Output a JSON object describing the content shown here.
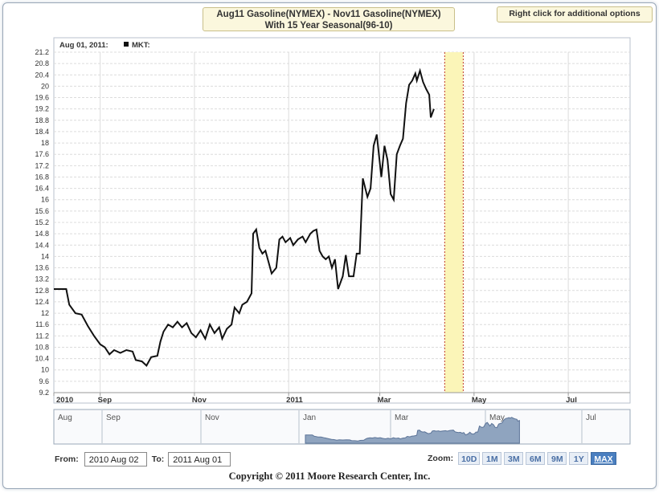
{
  "header": {
    "title_line1": "Aug11 Gasoline(NYMEX) - Nov11 Gasoline(NYMEX)",
    "title_line2": "With 15 Year Seasonal(96-10)",
    "right_click_label": "Right click for additional options"
  },
  "legend": {
    "date_label": "Aug 01, 2011:",
    "series_label": "MKT:"
  },
  "navigator": {
    "labels": [
      "Aug",
      "Sep",
      "Nov",
      "Jan",
      "Mar",
      "May",
      "Jul"
    ]
  },
  "controls": {
    "from_label": "From:",
    "from_value": "2010 Aug 02",
    "to_label": "To:",
    "to_value": "2011 Aug 01",
    "zoom_label": "Zoom:",
    "zoom_buttons": [
      "10D",
      "1M",
      "3M",
      "6M",
      "9M",
      "1Y",
      "MAX"
    ],
    "active_zoom": "MAX"
  },
  "footer": {
    "copyright": "Copyright © 2011 Moore Research Center, Inc."
  },
  "colors": {
    "line": "#111111",
    "highlight_band": "#fbf5b8",
    "highlight_border": "#c0392b",
    "navigator_fill": "#8fa4bf"
  },
  "chart_data": {
    "type": "line",
    "title": "Aug11 Gasoline(NYMEX) - Nov11 Gasoline(NYMEX) With 15 Year Seasonal(96-10)",
    "xlabel": "",
    "ylabel": "",
    "ylim": [
      9.2,
      21.2
    ],
    "yticks": [
      "9.2",
      "9.6",
      "10",
      "10.4",
      "10.8",
      "11.2",
      "11.6",
      "12",
      "12.4",
      "12.8",
      "13.2",
      "13.6",
      "14",
      "14.4",
      "14.8",
      "15.2",
      "15.6",
      "16",
      "16.4",
      "16.8",
      "17.2",
      "17.6",
      "18",
      "18.4",
      "18.8",
      "19.2",
      "19.6",
      "20",
      "20.4",
      "20.8",
      "21.2"
    ],
    "xlim": [
      "2010-08-02",
      "2011-08-10"
    ],
    "xticks": [
      {
        "label": "2010",
        "date": "2010-08-02"
      },
      {
        "label": "Sep",
        "date": "2010-09-01"
      },
      {
        "label": "Nov",
        "date": "2010-11-01"
      },
      {
        "label": "2011",
        "date": "2011-01-01"
      },
      {
        "label": "Mar",
        "date": "2011-03-01"
      },
      {
        "label": "May",
        "date": "2011-05-01"
      },
      {
        "label": "Jul",
        "date": "2011-07-01"
      }
    ],
    "highlight_range": [
      "2011-04-12",
      "2011-04-24"
    ],
    "grid": true,
    "series": [
      {
        "name": "MKT",
        "points": [
          [
            "2010-08-02",
            12.85
          ],
          [
            "2010-08-10",
            12.85
          ],
          [
            "2010-08-12",
            12.3
          ],
          [
            "2010-08-16",
            12.0
          ],
          [
            "2010-08-20",
            11.95
          ],
          [
            "2010-08-24",
            11.55
          ],
          [
            "2010-08-28",
            11.2
          ],
          [
            "2010-09-01",
            10.9
          ],
          [
            "2010-09-04",
            10.8
          ],
          [
            "2010-09-07",
            10.55
          ],
          [
            "2010-09-10",
            10.7
          ],
          [
            "2010-09-14",
            10.6
          ],
          [
            "2010-09-18",
            10.7
          ],
          [
            "2010-09-22",
            10.65
          ],
          [
            "2010-09-24",
            10.35
          ],
          [
            "2010-09-28",
            10.3
          ],
          [
            "2010-10-01",
            10.15
          ],
          [
            "2010-10-04",
            10.45
          ],
          [
            "2010-10-08",
            10.5
          ],
          [
            "2010-10-10",
            11.0
          ],
          [
            "2010-10-12",
            11.35
          ],
          [
            "2010-10-15",
            11.6
          ],
          [
            "2010-10-18",
            11.5
          ],
          [
            "2010-10-21",
            11.7
          ],
          [
            "2010-10-24",
            11.5
          ],
          [
            "2010-10-27",
            11.65
          ],
          [
            "2010-10-30",
            11.3
          ],
          [
            "2010-11-02",
            11.15
          ],
          [
            "2010-11-05",
            11.4
          ],
          [
            "2010-11-08",
            11.1
          ],
          [
            "2010-11-11",
            11.6
          ],
          [
            "2010-11-14",
            11.3
          ],
          [
            "2010-11-17",
            11.5
          ],
          [
            "2010-11-19",
            11.1
          ],
          [
            "2010-11-22",
            11.45
          ],
          [
            "2010-11-25",
            11.6
          ],
          [
            "2010-11-27",
            12.2
          ],
          [
            "2010-11-30",
            12.0
          ],
          [
            "2010-12-02",
            12.3
          ],
          [
            "2010-12-05",
            12.4
          ],
          [
            "2010-12-08",
            12.7
          ],
          [
            "2010-12-09",
            14.8
          ],
          [
            "2010-12-11",
            14.95
          ],
          [
            "2010-12-13",
            14.3
          ],
          [
            "2010-12-15",
            14.1
          ],
          [
            "2010-12-17",
            14.2
          ],
          [
            "2010-12-19",
            13.8
          ],
          [
            "2010-12-21",
            13.4
          ],
          [
            "2010-12-24",
            13.6
          ],
          [
            "2010-12-26",
            14.6
          ],
          [
            "2010-12-28",
            14.7
          ],
          [
            "2010-12-30",
            14.5
          ],
          [
            "2011-01-02",
            14.65
          ],
          [
            "2011-01-04",
            14.4
          ],
          [
            "2011-01-07",
            14.6
          ],
          [
            "2011-01-10",
            14.7
          ],
          [
            "2011-01-12",
            14.5
          ],
          [
            "2011-01-15",
            14.8
          ],
          [
            "2011-01-17",
            14.9
          ],
          [
            "2011-01-19",
            14.95
          ],
          [
            "2011-01-21",
            14.2
          ],
          [
            "2011-01-23",
            14.0
          ],
          [
            "2011-01-25",
            13.9
          ],
          [
            "2011-01-27",
            14.0
          ],
          [
            "2011-01-29",
            13.6
          ],
          [
            "2011-01-31",
            13.9
          ],
          [
            "2011-02-02",
            12.85
          ],
          [
            "2011-02-05",
            13.3
          ],
          [
            "2011-02-07",
            14.05
          ],
          [
            "2011-02-09",
            13.3
          ],
          [
            "2011-02-12",
            13.3
          ],
          [
            "2011-02-14",
            14.1
          ],
          [
            "2011-02-16",
            14.1
          ],
          [
            "2011-02-18",
            16.75
          ],
          [
            "2011-02-21",
            16.1
          ],
          [
            "2011-02-23",
            16.4
          ],
          [
            "2011-02-25",
            17.9
          ],
          [
            "2011-02-27",
            18.3
          ],
          [
            "2011-03-02",
            16.8
          ],
          [
            "2011-03-04",
            17.9
          ],
          [
            "2011-03-06",
            17.4
          ],
          [
            "2011-03-08",
            16.2
          ],
          [
            "2011-03-10",
            16.0
          ],
          [
            "2011-03-12",
            17.6
          ],
          [
            "2011-03-14",
            17.9
          ],
          [
            "2011-03-16",
            18.15
          ],
          [
            "2011-03-18",
            19.4
          ],
          [
            "2011-03-20",
            20.05
          ],
          [
            "2011-03-22",
            20.2
          ],
          [
            "2011-03-24",
            20.45
          ],
          [
            "2011-03-25",
            20.2
          ],
          [
            "2011-03-27",
            20.55
          ],
          [
            "2011-03-29",
            20.15
          ],
          [
            "2011-03-31",
            19.9
          ],
          [
            "2011-04-02",
            19.7
          ],
          [
            "2011-04-03",
            18.9
          ],
          [
            "2011-04-05",
            19.2
          ]
        ]
      }
    ]
  }
}
